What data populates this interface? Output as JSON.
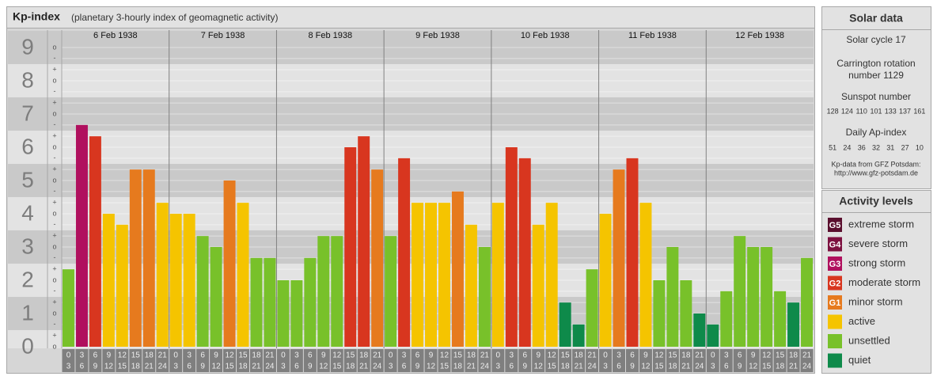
{
  "chart_data": {
    "type": "bar",
    "title": "Kp-index",
    "subtitle": "(planetary 3-hourly index of geomagnetic activity)",
    "ylim": [
      0,
      9.5
    ],
    "yticks": [
      0,
      1,
      2,
      3,
      4,
      5,
      6,
      7,
      8,
      9
    ],
    "yminor_ticks": [
      {
        "value": 0,
        "label": "o"
      },
      {
        "value": 0.33,
        "label": "+"
      },
      {
        "value": 0.67,
        "label": "-"
      },
      {
        "value": 1,
        "label": "o"
      },
      {
        "value": 1.33,
        "label": "+"
      },
      {
        "value": 1.67,
        "label": "-"
      },
      {
        "value": 2,
        "label": "o"
      },
      {
        "value": 2.33,
        "label": "+"
      },
      {
        "value": 2.67,
        "label": "-"
      },
      {
        "value": 3,
        "label": "o"
      },
      {
        "value": 3.33,
        "label": "+"
      },
      {
        "value": 3.67,
        "label": "-"
      },
      {
        "value": 4,
        "label": "o"
      },
      {
        "value": 4.33,
        "label": "+"
      },
      {
        "value": 4.67,
        "label": "-"
      },
      {
        "value": 5,
        "label": "o"
      },
      {
        "value": 5.33,
        "label": "+"
      },
      {
        "value": 5.67,
        "label": "-"
      },
      {
        "value": 6,
        "label": "o"
      },
      {
        "value": 6.33,
        "label": "+"
      },
      {
        "value": 6.67,
        "label": "-"
      },
      {
        "value": 7,
        "label": "o"
      },
      {
        "value": 7.33,
        "label": "+"
      },
      {
        "value": 7.67,
        "label": "-"
      },
      {
        "value": 8,
        "label": "o"
      },
      {
        "value": 8.33,
        "label": "+"
      },
      {
        "value": 8.67,
        "label": "-"
      },
      {
        "value": 9,
        "label": "o"
      }
    ],
    "grid": true,
    "slots": [
      [
        0,
        3
      ],
      [
        3,
        6
      ],
      [
        6,
        9
      ],
      [
        9,
        12
      ],
      [
        12,
        15
      ],
      [
        15,
        18
      ],
      [
        18,
        21
      ],
      [
        21,
        24
      ]
    ],
    "days": [
      {
        "date": "6 Feb 1938",
        "values": [
          2.33,
          6.67,
          6.33,
          4,
          3.67,
          5.33,
          5.33,
          4.33
        ],
        "colors": [
          "#78c12a",
          "#b0105e",
          "#d8361f",
          "#f5c400",
          "#f5c400",
          "#e67a1e",
          "#e67a1e",
          "#f5c400"
        ]
      },
      {
        "date": "7 Feb 1938",
        "values": [
          4,
          4,
          3.33,
          3,
          5,
          4.33,
          2.67,
          2.67
        ],
        "colors": [
          "#f5c400",
          "#f5c400",
          "#78c12a",
          "#78c12a",
          "#e67a1e",
          "#f5c400",
          "#78c12a",
          "#78c12a"
        ]
      },
      {
        "date": "8 Feb 1938",
        "values": [
          2,
          2,
          2.67,
          3.33,
          3.33,
          6,
          6.33,
          5.33
        ],
        "colors": [
          "#78c12a",
          "#78c12a",
          "#78c12a",
          "#78c12a",
          "#78c12a",
          "#d8361f",
          "#d8361f",
          "#e67a1e"
        ]
      },
      {
        "date": "9 Feb 1938",
        "values": [
          3.33,
          5.67,
          4.33,
          4.33,
          4.33,
          4.67,
          3.67,
          3
        ],
        "colors": [
          "#78c12a",
          "#d8361f",
          "#f5c400",
          "#f5c400",
          "#f5c400",
          "#e67a1e",
          "#f5c400",
          "#78c12a"
        ]
      },
      {
        "date": "10 Feb 1938",
        "values": [
          4.33,
          6,
          5.67,
          3.67,
          4.33,
          1.33,
          0.67,
          2.33
        ],
        "colors": [
          "#f5c400",
          "#d8361f",
          "#d8361f",
          "#f5c400",
          "#f5c400",
          "#0e8a4a",
          "#0e8a4a",
          "#78c12a"
        ]
      },
      {
        "date": "11 Feb 1938",
        "values": [
          4,
          5.33,
          5.67,
          4.33,
          2,
          3,
          2,
          1
        ],
        "colors": [
          "#f5c400",
          "#e67a1e",
          "#d8361f",
          "#f5c400",
          "#78c12a",
          "#78c12a",
          "#78c12a",
          "#0e8a4a"
        ]
      },
      {
        "date": "12 Feb 1938",
        "values": [
          0.67,
          1.67,
          3.33,
          3,
          3,
          1.67,
          1.33,
          2.67
        ],
        "colors": [
          "#0e8a4a",
          "#78c12a",
          "#78c12a",
          "#78c12a",
          "#78c12a",
          "#78c12a",
          "#0e8a4a",
          "#78c12a"
        ]
      }
    ],
    "legend_title": "Activity levels",
    "legend": [
      {
        "badge": "G5",
        "name": "extreme storm",
        "color": "#5a0f2e"
      },
      {
        "badge": "G4",
        "name": "severe storm",
        "color": "#7d1140"
      },
      {
        "badge": "G3",
        "name": "strong storm",
        "color": "#b0105e"
      },
      {
        "badge": "G2",
        "name": "moderate storm",
        "color": "#d8361f"
      },
      {
        "badge": "G1",
        "name": "minor storm",
        "color": "#e67a1e"
      },
      {
        "name": "active",
        "color": "#f5c400"
      },
      {
        "name": "unsettled",
        "color": "#78c12a"
      },
      {
        "name": "quiet",
        "color": "#0e8a4a"
      }
    ]
  },
  "solar_data": {
    "title": "Solar data",
    "cycle": "Solar cycle 17",
    "carrington": [
      "Carrington rotation",
      "number 1129"
    ],
    "sunspot_title": "Sunspot number",
    "sunspot_numbers": [
      128,
      124,
      110,
      101,
      133,
      137,
      161
    ],
    "ap_title": "Daily Ap-index",
    "ap_values": [
      51,
      24,
      36,
      32,
      31,
      27,
      10
    ],
    "source": "Kp-data from GFZ Potsdam:",
    "url": "http://www.gfz-potsdam.de"
  }
}
